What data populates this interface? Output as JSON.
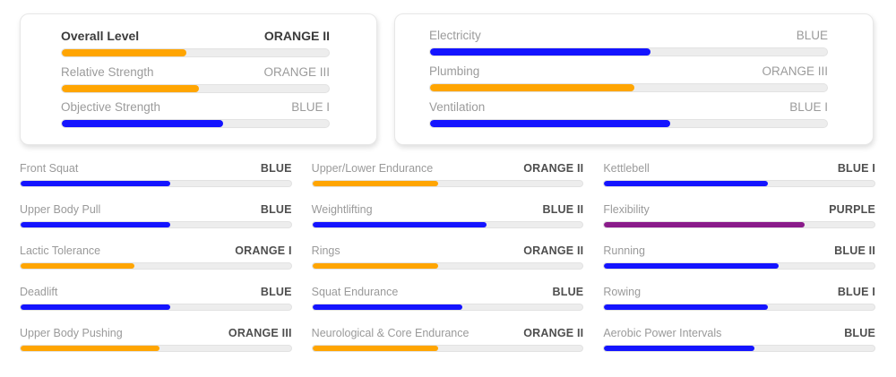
{
  "colors": {
    "orange": "#FFA502",
    "blue": "#1414FF",
    "purple": "#8A1B8A",
    "track": "#ededed",
    "label_gray": "#9a9a9a",
    "value_dark": "#4e4e4e",
    "header_dark": "#3b3b3b"
  },
  "cards": [
    {
      "rows": [
        {
          "label": "Overall Level",
          "value": "ORANGE II",
          "percent": 46.5,
          "color": "orange"
        },
        {
          "label": "Relative Strength",
          "value": "ORANGE III",
          "percent": 51.5,
          "color": "orange"
        },
        {
          "label": "Objective Strength",
          "value": "BLUE I",
          "percent": 60.5,
          "color": "blue"
        }
      ]
    },
    {
      "rows": [
        {
          "label": "Electricity",
          "value": "BLUE",
          "percent": 55.5,
          "color": "blue"
        },
        {
          "label": "Plumbing",
          "value": "ORANGE III",
          "percent": 51.5,
          "color": "orange"
        },
        {
          "label": "Ventilation",
          "value": "BLUE I",
          "percent": 60.5,
          "color": "blue"
        }
      ]
    }
  ],
  "skill_columns": [
    [
      {
        "label": "Front Squat",
        "value": "BLUE",
        "percent": 55.5,
        "color": "blue"
      },
      {
        "label": "Upper Body Pull",
        "value": "BLUE",
        "percent": 55.5,
        "color": "blue"
      },
      {
        "label": "Lactic Tolerance",
        "value": "ORANGE I",
        "percent": 42,
        "color": "orange"
      },
      {
        "label": "Deadlift",
        "value": "BLUE",
        "percent": 55.5,
        "color": "blue"
      },
      {
        "label": "Upper Body Pushing",
        "value": "ORANGE III",
        "percent": 51.5,
        "color": "orange"
      }
    ],
    [
      {
        "label": "Upper/Lower Endurance",
        "value": "ORANGE II",
        "percent": 46.5,
        "color": "orange"
      },
      {
        "label": "Weightlifting",
        "value": "BLUE II",
        "percent": 64.5,
        "color": "blue"
      },
      {
        "label": "Rings",
        "value": "ORANGE II",
        "percent": 46.5,
        "color": "orange"
      },
      {
        "label": "Squat Endurance",
        "value": "BLUE",
        "percent": 55.5,
        "color": "blue"
      },
      {
        "label": "Neurological & Core Endurance",
        "value": "ORANGE II",
        "percent": 46.5,
        "color": "orange"
      }
    ],
    [
      {
        "label": "Kettlebell",
        "value": "BLUE I",
        "percent": 60.5,
        "color": "blue"
      },
      {
        "label": "Flexibility",
        "value": "PURPLE",
        "percent": 74,
        "color": "purple"
      },
      {
        "label": "Running",
        "value": "BLUE II",
        "percent": 64.5,
        "color": "blue"
      },
      {
        "label": "Rowing",
        "value": "BLUE I",
        "percent": 60.5,
        "color": "blue"
      },
      {
        "label": "Aerobic Power Intervals",
        "value": "BLUE",
        "percent": 55.5,
        "color": "blue"
      }
    ]
  ]
}
